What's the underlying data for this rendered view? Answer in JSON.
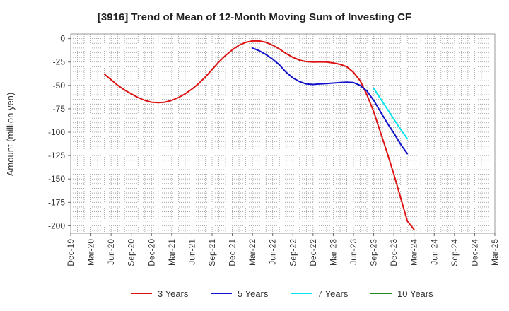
{
  "chart_data": {
    "type": "line",
    "title": "[3916]  Trend of Mean of 12-Month Moving Sum of Investing CF",
    "xlabel": "",
    "ylabel": "Amount (million yen)",
    "ylim": [
      -208,
      5
    ],
    "yticks": [
      0,
      -25,
      -50,
      -75,
      -100,
      -125,
      -150,
      -175,
      -200
    ],
    "ytick_labels": [
      "0",
      "-25",
      "-50",
      "-75",
      "-100",
      "-125",
      "-150",
      "-175",
      "-200"
    ],
    "x_range": [
      0,
      63
    ],
    "xticks": [
      0,
      3,
      6,
      9,
      12,
      15,
      18,
      21,
      24,
      27,
      30,
      33,
      36,
      39,
      42,
      45,
      48,
      51,
      54,
      57,
      60,
      63
    ],
    "xtick_labels": [
      "Dec-19",
      "Mar-20",
      "Jun-20",
      "Sep-20",
      "Dec-20",
      "Mar-21",
      "Jun-21",
      "Sep-21",
      "Dec-21",
      "Mar-22",
      "Jun-22",
      "Sep-22",
      "Dec-22",
      "Mar-23",
      "Jun-23",
      "Sep-23",
      "Dec-23",
      "Mar-24",
      "Jun-24",
      "Sep-24",
      "Dec-24",
      "Mar-25"
    ],
    "grid": true,
    "legend_position": "bottom",
    "series": [
      {
        "name": "3 Years",
        "color": "#dd1111",
        "points": [
          [
            5,
            -38
          ],
          [
            6,
            -44
          ],
          [
            7,
            -50
          ],
          [
            8,
            -55
          ],
          [
            9,
            -59
          ],
          [
            10,
            -63
          ],
          [
            11,
            -66
          ],
          [
            12,
            -68
          ],
          [
            13,
            -68.5
          ],
          [
            14,
            -68
          ],
          [
            15,
            -66
          ],
          [
            16,
            -63
          ],
          [
            17,
            -59
          ],
          [
            18,
            -54
          ],
          [
            19,
            -48
          ],
          [
            20,
            -41
          ],
          [
            21,
            -33
          ],
          [
            22,
            -25
          ],
          [
            23,
            -18
          ],
          [
            24,
            -12
          ],
          [
            25,
            -7
          ],
          [
            26,
            -4
          ],
          [
            27,
            -2.5
          ],
          [
            28,
            -2.5
          ],
          [
            29,
            -4
          ],
          [
            30,
            -7
          ],
          [
            31,
            -11
          ],
          [
            32,
            -16
          ],
          [
            33,
            -20
          ],
          [
            34,
            -23
          ],
          [
            35,
            -24.5
          ],
          [
            36,
            -25
          ],
          [
            37,
            -24.8
          ],
          [
            38,
            -25
          ],
          [
            39,
            -26
          ],
          [
            40,
            -27.5
          ],
          [
            41,
            -30
          ],
          [
            42,
            -36
          ],
          [
            43,
            -45
          ],
          [
            44,
            -60
          ],
          [
            45,
            -78
          ],
          [
            46,
            -100
          ],
          [
            47,
            -122
          ],
          [
            48,
            -145
          ],
          [
            49,
            -170
          ],
          [
            50,
            -195
          ],
          [
            51,
            -204
          ]
        ]
      },
      {
        "name": "5 Years",
        "color": "#1111cc",
        "points": [
          [
            27,
            -10
          ],
          [
            28,
            -13
          ],
          [
            29,
            -17
          ],
          [
            30,
            -22
          ],
          [
            31,
            -28
          ],
          [
            32,
            -36
          ],
          [
            33,
            -42
          ],
          [
            34,
            -46
          ],
          [
            35,
            -48.5
          ],
          [
            36,
            -49
          ],
          [
            37,
            -48.5
          ],
          [
            38,
            -48
          ],
          [
            39,
            -47.5
          ],
          [
            40,
            -47
          ],
          [
            41,
            -46.5
          ],
          [
            42,
            -47
          ],
          [
            43,
            -50
          ],
          [
            44,
            -56
          ],
          [
            45,
            -66
          ],
          [
            46,
            -78
          ],
          [
            47,
            -90
          ],
          [
            48,
            -101
          ],
          [
            49,
            -113
          ],
          [
            50,
            -123
          ]
        ]
      },
      {
        "name": "7 Years",
        "color": "#00e5ee",
        "points": [
          [
            45,
            -53
          ],
          [
            46,
            -64
          ],
          [
            47,
            -75
          ],
          [
            48,
            -86
          ],
          [
            49,
            -97
          ],
          [
            50,
            -107
          ]
        ]
      },
      {
        "name": "10 Years",
        "color": "#228822",
        "points": []
      }
    ]
  }
}
